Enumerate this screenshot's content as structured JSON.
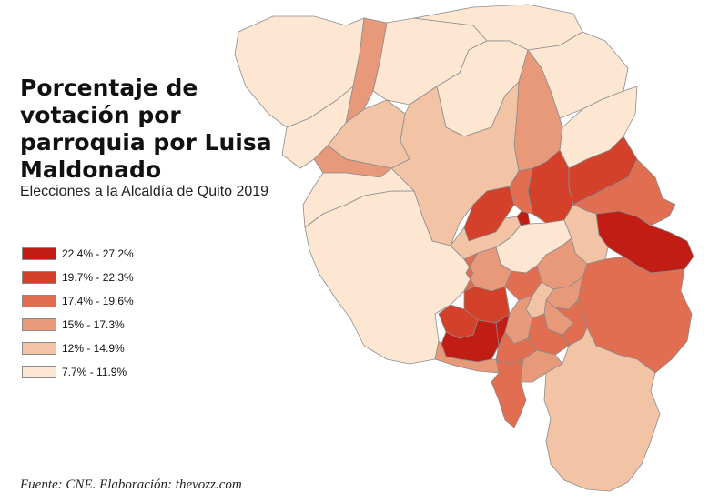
{
  "title": "Porcentaje de votación por parroquia por Luisa Maldonado",
  "subtitle": "Elecciones a la Alcaldía de Quito 2019",
  "source": "Fuente: CNE. Elaboración: thevozz.com",
  "legend": [
    {
      "label": "22.4% - 27.2%",
      "color": "#c21d14"
    },
    {
      "label": "19.7% - 22.3%",
      "color": "#d4412b"
    },
    {
      "label": "17.4% - 19.6%",
      "color": "#e16e50"
    },
    {
      "label": "15% - 17.3%",
      "color": "#e8997a"
    },
    {
      "label": "12% - 14.9%",
      "color": "#f2c3a5"
    },
    {
      "label": "7.7% - 11.9%",
      "color": "#fde7d3"
    }
  ],
  "map": {
    "parishes": [
      {
        "id": "nw-far-west",
        "class": 5
      },
      {
        "id": "nw-pacto",
        "class": 5
      },
      {
        "id": "nw-strip",
        "class": 3
      },
      {
        "id": "nw-gualea",
        "class": 4
      },
      {
        "id": "nw-nanegalito",
        "class": 3
      },
      {
        "id": "north-big",
        "class": 5
      },
      {
        "id": "north-east-cap",
        "class": 5
      },
      {
        "id": "north-mid",
        "class": 5
      },
      {
        "id": "north-right",
        "class": 5
      },
      {
        "id": "far-ne",
        "class": 5
      },
      {
        "id": "north-strip",
        "class": 3
      },
      {
        "id": "nono",
        "class": 4
      },
      {
        "id": "west-big",
        "class": 5
      },
      {
        "id": "lloa",
        "class": 5
      },
      {
        "id": "n-cluster-1",
        "class": 1
      },
      {
        "id": "n-cluster-2",
        "class": 1
      },
      {
        "id": "n-cluster-3",
        "class": 1
      },
      {
        "id": "n-small-dark",
        "class": 0
      },
      {
        "id": "n-cluster-4",
        "class": 2
      },
      {
        "id": "calderon-area",
        "class": 4
      },
      {
        "id": "east-dark",
        "class": 0
      },
      {
        "id": "east-mid",
        "class": 2
      },
      {
        "id": "east-large-south",
        "class": 2
      },
      {
        "id": "c-urban-1",
        "class": 5
      },
      {
        "id": "c-urban-2",
        "class": 4
      },
      {
        "id": "c-urban-3",
        "class": 3
      },
      {
        "id": "c-urban-4",
        "class": 3
      },
      {
        "id": "c-west-1",
        "class": 2
      },
      {
        "id": "c-west-2",
        "class": 2
      },
      {
        "id": "c-mid-1",
        "class": 3
      },
      {
        "id": "c-mid-2",
        "class": 4
      },
      {
        "id": "valle-1",
        "class": 3
      },
      {
        "id": "valle-2",
        "class": 2
      },
      {
        "id": "valle-3",
        "class": 3
      },
      {
        "id": "valle-4",
        "class": 2
      },
      {
        "id": "s-cluster-1",
        "class": 1
      },
      {
        "id": "s-cluster-2",
        "class": 1
      },
      {
        "id": "s-dark-1",
        "class": 0
      },
      {
        "id": "s-dark-2",
        "class": 0
      },
      {
        "id": "s-mid",
        "class": 2
      },
      {
        "id": "s-strip",
        "class": 3
      },
      {
        "id": "s-finger",
        "class": 2
      },
      {
        "id": "s-mid-2",
        "class": 3
      },
      {
        "id": "south-big",
        "class": 4
      }
    ]
  }
}
